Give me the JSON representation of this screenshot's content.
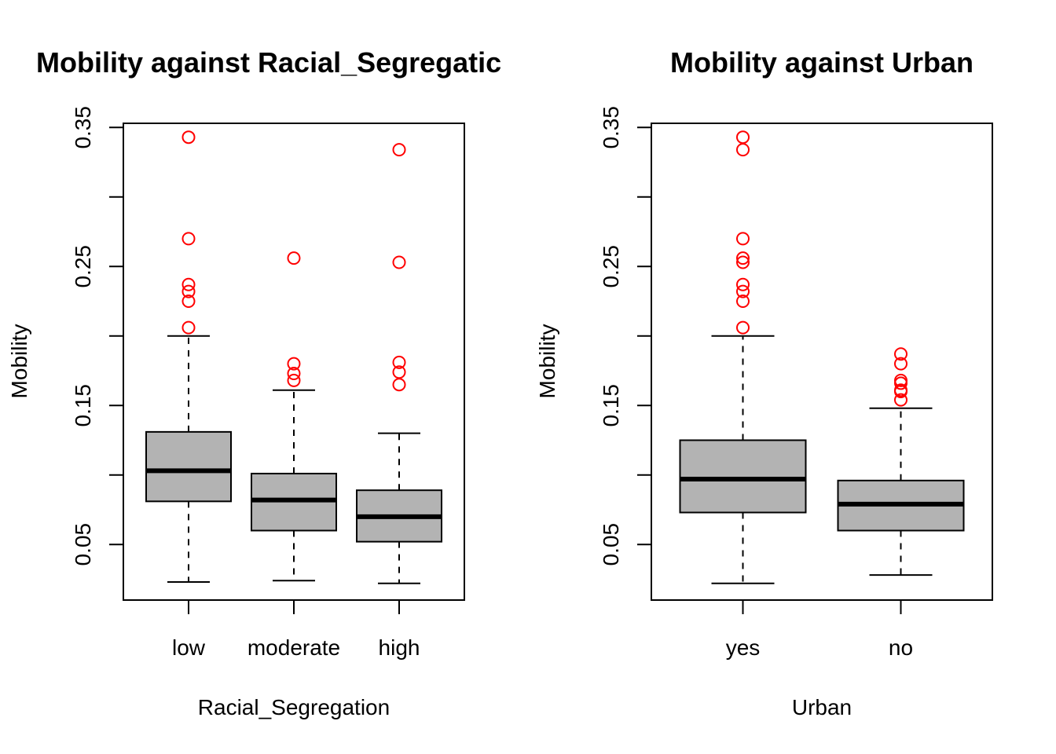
{
  "chart_data": [
    {
      "type": "boxplot",
      "title": "Mobility against Racial_Segregatic",
      "xlabel": "Racial_Segregation",
      "ylabel": "Mobility",
      "ylim": [
        0.01,
        0.353
      ],
      "yticks": [
        "0.05",
        "0.15",
        "0.25",
        "0.35"
      ],
      "categories": [
        "low",
        "moderate",
        "high"
      ],
      "grid": false,
      "box_fill": "#b3b3b3",
      "outlier_color": "#ff0000",
      "boxes": [
        {
          "whisker_low": 0.023,
          "q1": 0.081,
          "median": 0.103,
          "q3": 0.131,
          "whisker_high": 0.2,
          "outliers": [
            0.343,
            0.27,
            0.237,
            0.232,
            0.225,
            0.206
          ]
        },
        {
          "whisker_low": 0.024,
          "q1": 0.06,
          "median": 0.082,
          "q3": 0.101,
          "whisker_high": 0.161,
          "outliers": [
            0.256,
            0.18,
            0.173,
            0.168
          ]
        },
        {
          "whisker_low": 0.022,
          "q1": 0.052,
          "median": 0.07,
          "q3": 0.089,
          "whisker_high": 0.13,
          "outliers": [
            0.334,
            0.253,
            0.181,
            0.174,
            0.165
          ]
        }
      ]
    },
    {
      "type": "boxplot",
      "title": "Mobility against Urban",
      "xlabel": "Urban",
      "ylabel": "Mobility",
      "ylim": [
        0.01,
        0.353
      ],
      "yticks": [
        "0.05",
        "0.15",
        "0.25",
        "0.35"
      ],
      "categories": [
        "yes",
        "no"
      ],
      "grid": false,
      "box_fill": "#b3b3b3",
      "outlier_color": "#ff0000",
      "boxes": [
        {
          "whisker_low": 0.022,
          "q1": 0.073,
          "median": 0.097,
          "q3": 0.125,
          "whisker_high": 0.2,
          "outliers": [
            0.343,
            0.334,
            0.27,
            0.256,
            0.253,
            0.237,
            0.232,
            0.225,
            0.206
          ]
        },
        {
          "whisker_low": 0.028,
          "q1": 0.06,
          "median": 0.079,
          "q3": 0.096,
          "whisker_high": 0.148,
          "outliers": [
            0.187,
            0.18,
            0.168,
            0.166,
            0.161,
            0.16,
            0.154
          ]
        }
      ]
    }
  ]
}
